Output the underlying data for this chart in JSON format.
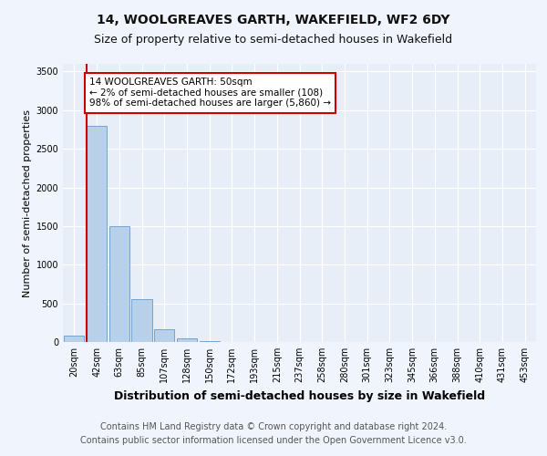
{
  "title1": "14, WOOLGREAVES GARTH, WAKEFIELD, WF2 6DY",
  "title2": "Size of property relative to semi-detached houses in Wakefield",
  "xlabel": "Distribution of semi-detached houses by size in Wakefield",
  "ylabel": "Number of semi-detached properties",
  "categories": [
    "20sqm",
    "42sqm",
    "63sqm",
    "85sqm",
    "107sqm",
    "128sqm",
    "150sqm",
    "172sqm",
    "193sqm",
    "215sqm",
    "237sqm",
    "258sqm",
    "280sqm",
    "301sqm",
    "323sqm",
    "345sqm",
    "366sqm",
    "388sqm",
    "410sqm",
    "431sqm",
    "453sqm"
  ],
  "values": [
    80,
    2800,
    1500,
    550,
    160,
    50,
    10,
    5,
    3,
    2,
    1,
    0,
    0,
    0,
    0,
    0,
    0,
    0,
    0,
    0,
    0
  ],
  "bar_color": "#b8d0e8",
  "bar_edge_color": "#6699cc",
  "marker_color": "#cc0000",
  "annotation_text": "14 WOOLGREAVES GARTH: 50sqm\n← 2% of semi-detached houses are smaller (108)\n98% of semi-detached houses are larger (5,860) →",
  "annotation_box_color": "#ffffff",
  "annotation_box_edge_color": "#cc0000",
  "ylim": [
    0,
    3600
  ],
  "yticks": [
    0,
    500,
    1000,
    1500,
    2000,
    2500,
    3000,
    3500
  ],
  "background_color": "#e8eef8",
  "grid_color": "#ffffff",
  "footer": "Contains HM Land Registry data © Crown copyright and database right 2024.\nContains public sector information licensed under the Open Government Licence v3.0.",
  "title1_fontsize": 10,
  "title2_fontsize": 9,
  "xlabel_fontsize": 9,
  "ylabel_fontsize": 8,
  "footer_fontsize": 7,
  "tick_fontsize": 7
}
